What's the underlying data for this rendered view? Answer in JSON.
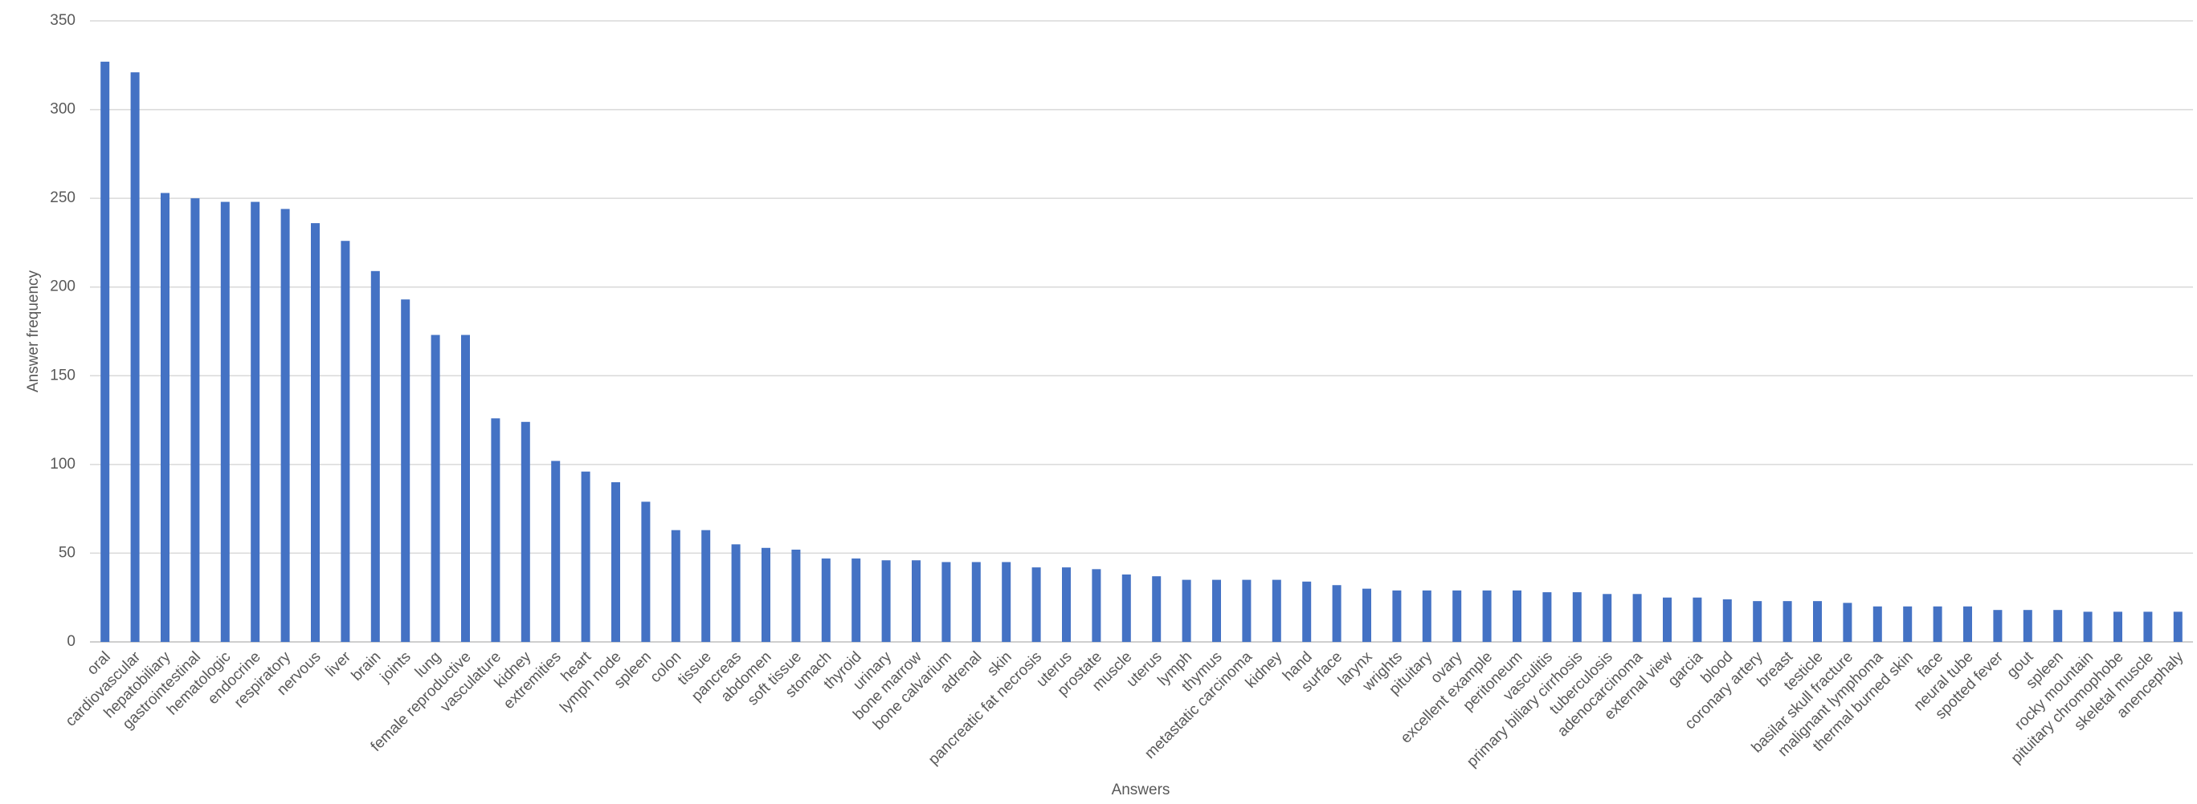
{
  "chart_data": {
    "type": "bar",
    "y_label": "Answer frequency",
    "x_label": "Answers",
    "color": "#4472c4",
    "grid": true,
    "ylim": [
      0,
      350
    ],
    "yticks": [
      0,
      50,
      100,
      150,
      200,
      250,
      300,
      350
    ],
    "categories": [
      "oral",
      "cardiovascular",
      "hepatobiliary",
      "gastrointestinal",
      "hematologic",
      "endocrine",
      "respiratory",
      "nervous",
      "liver",
      "brain",
      "joints",
      "lung",
      "female reproductive",
      "vasculature",
      "kidney",
      "extremities",
      "heart",
      "lymph node",
      "spleen",
      "colon",
      "tissue",
      "pancreas",
      "abdomen",
      "soft tissue",
      "stomach",
      "thyroid",
      "urinary",
      "bone marrow",
      "bone calvarium",
      "adrenal",
      "skin",
      "pancreatic fat necrosis",
      "uterus",
      "prostate",
      "muscle",
      "uterus",
      "lymph",
      "thymus",
      "metastatic carcinoma",
      "kidney",
      "hand",
      "surface",
      "larynx",
      "wrights",
      "pituitary",
      "ovary",
      "excellent example",
      "peritoneum",
      "vasculitis",
      "primary biliary cirrhosis",
      "tuberculosis",
      "adenocarcinoma",
      "external view",
      "garcia",
      "blood",
      "coronary artery",
      "breast",
      "testicle",
      "basilar skull fracture",
      "malignant lymphoma",
      "thermal burned skin",
      "face",
      "neural tube",
      "spotted fever",
      "gout",
      "spleen",
      "rocky mountain",
      "pituitary chromophobe",
      "skeletal muscle",
      "anencephaly"
    ],
    "values": [
      327,
      321,
      253,
      250,
      248,
      248,
      244,
      236,
      226,
      209,
      193,
      173,
      173,
      126,
      124,
      102,
      96,
      90,
      79,
      63,
      63,
      55,
      53,
      52,
      47,
      47,
      46,
      46,
      45,
      45,
      45,
      42,
      42,
      41,
      38,
      37,
      35,
      35,
      35,
      35,
      34,
      32,
      30,
      29,
      29,
      29,
      29,
      29,
      28,
      28,
      27,
      27,
      25,
      25,
      24,
      23,
      23,
      23,
      22,
      20,
      20,
      20,
      20,
      18,
      18,
      18,
      17,
      17,
      17,
      17
    ]
  }
}
